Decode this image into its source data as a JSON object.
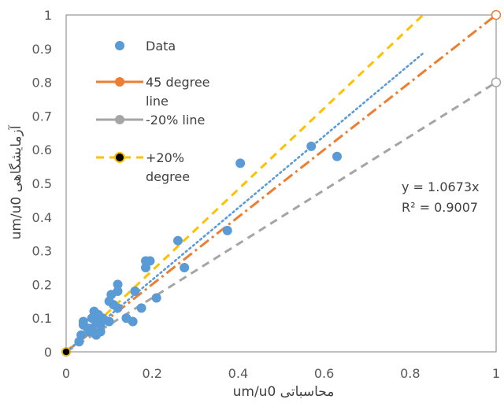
{
  "chart_data": {
    "type": "scatter",
    "xlabel": "um/u0 محاسباتی",
    "ylabel": "um/u0 آزمایشگاهی",
    "xlim": [
      0,
      1
    ],
    "ylim": [
      0,
      1
    ],
    "x_ticks": [
      "0",
      "0.2",
      "0.4",
      "0.6",
      "0.8",
      "1"
    ],
    "y_ticks": [
      "0",
      "0.1",
      "0.2",
      "0.3",
      "0.4",
      "0.5",
      "0.6",
      "0.7",
      "0.8",
      "0.9",
      "1"
    ],
    "grid": false,
    "legend": {
      "position": "top-left",
      "entries": [
        {
          "id": "data",
          "lines": [
            "Data"
          ],
          "color": "#5b9bd5",
          "kind": "marker"
        },
        {
          "id": "line45",
          "lines": [
            "45 degree",
            "line"
          ],
          "color": "#ed7d31",
          "kind": "line-marker"
        },
        {
          "id": "minus20",
          "lines": [
            "-20% line"
          ],
          "color": "#a5a5a5",
          "kind": "line-marker"
        },
        {
          "id": "plus20",
          "lines": [
            "+20%",
            "degree"
          ],
          "color": "#ffc000",
          "kind": "line-dot"
        }
      ]
    },
    "series": [
      {
        "name": "Data",
        "kind": "scatter",
        "color": "#5b9bd5",
        "points": [
          [
            0.0,
            0.0
          ],
          [
            0.03,
            0.03
          ],
          [
            0.035,
            0.05
          ],
          [
            0.04,
            0.08
          ],
          [
            0.04,
            0.09
          ],
          [
            0.05,
            0.07
          ],
          [
            0.055,
            0.06
          ],
          [
            0.06,
            0.07
          ],
          [
            0.06,
            0.1
          ],
          [
            0.065,
            0.12
          ],
          [
            0.07,
            0.09
          ],
          [
            0.07,
            0.05
          ],
          [
            0.075,
            0.11
          ],
          [
            0.08,
            0.08
          ],
          [
            0.08,
            0.06
          ],
          [
            0.085,
            0.1
          ],
          [
            0.1,
            0.09
          ],
          [
            0.1,
            0.15
          ],
          [
            0.105,
            0.17
          ],
          [
            0.11,
            0.14
          ],
          [
            0.12,
            0.18
          ],
          [
            0.12,
            0.2
          ],
          [
            0.12,
            0.13
          ],
          [
            0.14,
            0.1
          ],
          [
            0.155,
            0.09
          ],
          [
            0.16,
            0.18
          ],
          [
            0.175,
            0.13
          ],
          [
            0.185,
            0.25
          ],
          [
            0.185,
            0.27
          ],
          [
            0.195,
            0.27
          ],
          [
            0.21,
            0.16
          ],
          [
            0.26,
            0.33
          ],
          [
            0.275,
            0.25
          ],
          [
            0.375,
            0.36
          ],
          [
            0.405,
            0.56
          ],
          [
            0.57,
            0.61
          ],
          [
            0.63,
            0.58
          ]
        ]
      },
      {
        "name": "45 degree line",
        "kind": "line",
        "color": "#ed7d31",
        "dash": "dashdot",
        "points": [
          [
            0,
            0
          ],
          [
            1,
            1
          ]
        ]
      },
      {
        "name": "-20% line",
        "kind": "line",
        "color": "#a5a5a5",
        "dash": "dash",
        "points": [
          [
            0,
            0
          ],
          [
            1,
            0.8
          ]
        ]
      },
      {
        "name": "+20% degree",
        "kind": "line",
        "color": "#ffc000",
        "dash": "dash",
        "points": [
          [
            0,
            0
          ],
          [
            0.83,
            1.0
          ]
        ]
      },
      {
        "name": "trendline",
        "kind": "line",
        "color": "#5b9bd5",
        "dash": "dot",
        "points": [
          [
            0,
            0
          ],
          [
            0.83,
            0.886
          ]
        ]
      }
    ],
    "annotations": [
      {
        "id": "equation",
        "text": "y = 1.0673x"
      },
      {
        "id": "r2",
        "text": "R² = 0.9007"
      }
    ]
  }
}
